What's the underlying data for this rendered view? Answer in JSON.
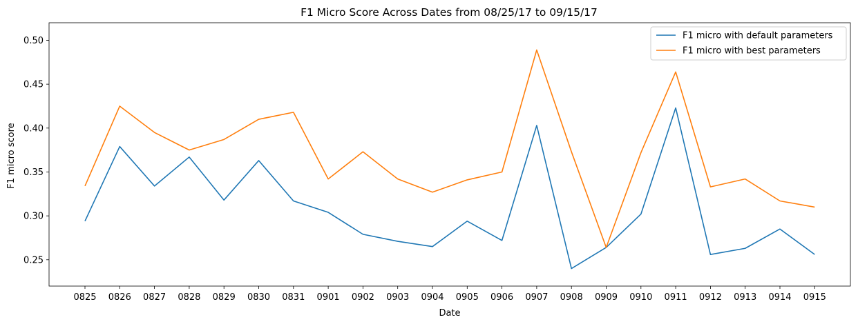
{
  "chart_data": {
    "type": "line",
    "title": "F1 Micro Score Across Dates from 08/25/17 to 09/15/17",
    "xlabel": "Date",
    "ylabel": "F1 micro score",
    "categories": [
      "0825",
      "0826",
      "0827",
      "0828",
      "0829",
      "0830",
      "0831",
      "0901",
      "0902",
      "0903",
      "0904",
      "0905",
      "0906",
      "0907",
      "0908",
      "0909",
      "0910",
      "0911",
      "0912",
      "0913",
      "0914",
      "0915"
    ],
    "yticks": [
      "0.25",
      "0.30",
      "0.35",
      "0.40",
      "0.45",
      "0.50"
    ],
    "ylim": [
      0.22,
      0.52
    ],
    "grid": false,
    "legend_position": "top-right",
    "series": [
      {
        "name": "F1 micro with default parameters",
        "color": "#1f77b4",
        "values": [
          0.294,
          0.379,
          0.334,
          0.367,
          0.318,
          0.363,
          0.317,
          0.304,
          0.279,
          0.271,
          0.265,
          0.294,
          0.272,
          0.403,
          0.24,
          0.264,
          0.302,
          0.423,
          0.256,
          0.263,
          0.285,
          0.256
        ]
      },
      {
        "name": "F1 micro with best parameters",
        "color": "#ff7f0e",
        "values": [
          0.334,
          0.425,
          0.395,
          0.375,
          0.387,
          0.41,
          0.418,
          0.342,
          0.373,
          0.342,
          0.327,
          0.341,
          0.35,
          0.489,
          0.373,
          0.264,
          0.372,
          0.464,
          0.333,
          0.342,
          0.317,
          0.31
        ]
      }
    ]
  }
}
